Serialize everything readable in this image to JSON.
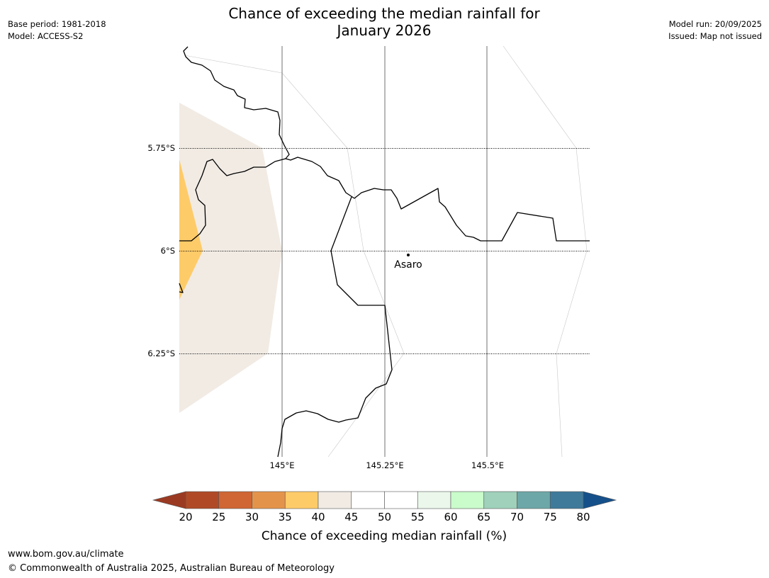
{
  "header": {
    "title_line1": "Chance of exceeding the median rainfall for",
    "title_line2": "January 2026",
    "base_period": "Base period: 1981-2018",
    "model": "Model: ACCESS-S2",
    "model_run": "Model run: 20/09/2025",
    "issued": "Issued: Map not issued"
  },
  "map": {
    "lat_labels": [
      "5.75°S",
      "6°S",
      "6.25°S"
    ],
    "lon_labels": [
      "145°E",
      "145.25°E",
      "145.5°E"
    ],
    "place": {
      "name": "Asaro"
    }
  },
  "colorbar": {
    "label": "Chance of exceeding median rainfall (%)",
    "ticks": [
      "20",
      "25",
      "30",
      "35",
      "40",
      "45",
      "50",
      "55",
      "60",
      "65",
      "70",
      "75",
      "80"
    ],
    "under_color": "#9b3a22",
    "over_color": "#15508a",
    "colors": [
      "#b04a26",
      "#cf6633",
      "#e4944a",
      "#fecb69",
      "#f1ebe4",
      "#ffffff",
      "#ffffff",
      "#eaf7ea",
      "#c9fbcb",
      "#9fd1bb",
      "#6ea7a7",
      "#3f7a9b"
    ]
  },
  "footer": {
    "url": "www.bom.gov.au/climate",
    "copyright": "© Commonwealth of Australia 2025, Australian Bureau of Meteorology"
  }
}
